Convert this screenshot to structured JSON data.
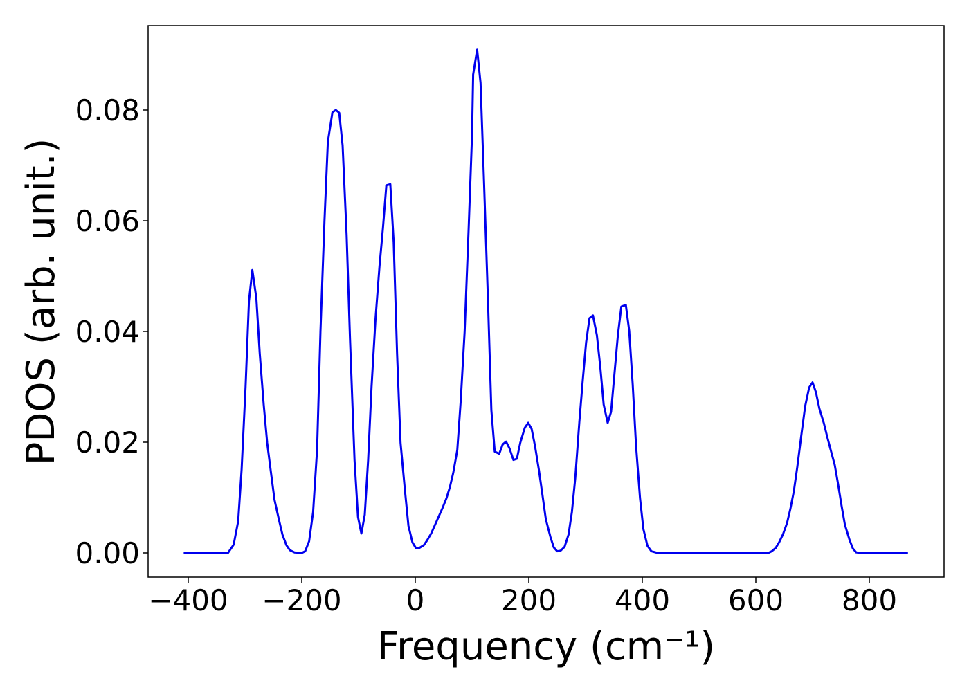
{
  "chart_data": {
    "type": "line",
    "xlabel": "Frequency (cm⁻¹)",
    "ylabel": "PDOS (arb. unit.)",
    "color": "#0000ee",
    "x": [
      -408,
      -330,
      -320,
      -312,
      -306,
      -299,
      -293,
      -287,
      -280,
      -274,
      -267,
      -261,
      -254,
      -248,
      -240,
      -234,
      -227,
      -221,
      -213,
      -200,
      -194,
      -187,
      -180,
      -173,
      -167,
      -160,
      -154,
      -146,
      -140,
      -134,
      -128,
      -121,
      -115,
      -107,
      -101,
      -95,
      -89,
      -83,
      -77,
      -70,
      -63,
      -57,
      -51,
      -44,
      -38,
      -32,
      -26,
      -18,
      -12,
      -5,
      1,
      7,
      15,
      21,
      28,
      34,
      41,
      48,
      55,
      61,
      67,
      74,
      80,
      87,
      94,
      100,
      102,
      109,
      115,
      121,
      128,
      134,
      140,
      148,
      154,
      160,
      166,
      173,
      179,
      185,
      193,
      199,
      205,
      211,
      218,
      224,
      230,
      238,
      244,
      250,
      256,
      263,
      270,
      276,
      282,
      289,
      295,
      301,
      307,
      313,
      320,
      326,
      332,
      339,
      345,
      351,
      357,
      363,
      371,
      377,
      383,
      389,
      396,
      402,
      409,
      416,
      427,
      622,
      628,
      635,
      641,
      648,
      655,
      661,
      667,
      673,
      680,
      687,
      694,
      700,
      706,
      712,
      720,
      726,
      732,
      739,
      745,
      751,
      757,
      765,
      771,
      777,
      784,
      868
    ],
    "values": [
      0,
      0,
      0.0015,
      0.0057,
      0.0151,
      0.03,
      0.0455,
      0.0511,
      0.046,
      0.036,
      0.0268,
      0.0199,
      0.0143,
      0.0096,
      0.0059,
      0.0033,
      0.0014,
      0.0005,
      0.0001,
      0,
      0.0003,
      0.0021,
      0.0074,
      0.0186,
      0.04,
      0.06,
      0.0743,
      0.0796,
      0.08,
      0.0795,
      0.0736,
      0.0574,
      0.0386,
      0.0168,
      0.0065,
      0.0035,
      0.0069,
      0.0168,
      0.03,
      0.0424,
      0.0518,
      0.0586,
      0.0664,
      0.0666,
      0.0561,
      0.036,
      0.0199,
      0.0111,
      0.0049,
      0.0019,
      0.0009,
      0.0009,
      0.0014,
      0.0023,
      0.0035,
      0.0049,
      0.0065,
      0.0081,
      0.0099,
      0.0119,
      0.0145,
      0.0186,
      0.0274,
      0.04,
      0.0586,
      0.0755,
      0.0864,
      0.0909,
      0.0849,
      0.0674,
      0.0461,
      0.0258,
      0.0183,
      0.0179,
      0.0196,
      0.0201,
      0.0189,
      0.0168,
      0.017,
      0.0199,
      0.0226,
      0.0235,
      0.0224,
      0.0193,
      0.0149,
      0.0105,
      0.0061,
      0.0029,
      0.001,
      0.0003,
      0.0004,
      0.0011,
      0.0033,
      0.0074,
      0.0136,
      0.0236,
      0.0311,
      0.038,
      0.0424,
      0.0429,
      0.0393,
      0.0336,
      0.0268,
      0.0235,
      0.0255,
      0.0324,
      0.0393,
      0.0445,
      0.0448,
      0.0401,
      0.0305,
      0.0193,
      0.0099,
      0.0043,
      0.0013,
      0.0003,
      0,
      0,
      0.0003,
      0.0009,
      0.0019,
      0.0034,
      0.0054,
      0.008,
      0.0111,
      0.0155,
      0.0211,
      0.0265,
      0.0299,
      0.0308,
      0.029,
      0.0261,
      0.0234,
      0.0209,
      0.0186,
      0.0159,
      0.0124,
      0.0086,
      0.0051,
      0.0024,
      0.0008,
      0.0001,
      0,
      0
    ],
    "xlim": [
      -470.7,
      931.7
    ],
    "ylim": [
      -0.004375,
      0.09525
    ],
    "xticks": [
      {
        "value": -400,
        "label": "−400"
      },
      {
        "value": -200,
        "label": "−200"
      },
      0,
      200,
      400,
      600,
      800
    ],
    "yticks": [
      {
        "value": 0,
        "label": "0.00"
      },
      {
        "value": 0.02,
        "label": "0.02"
      },
      {
        "value": 0.04,
        "label": "0.04"
      },
      {
        "value": 0.06,
        "label": "0.06"
      },
      {
        "value": 0.08,
        "label": "0.08"
      }
    ]
  }
}
